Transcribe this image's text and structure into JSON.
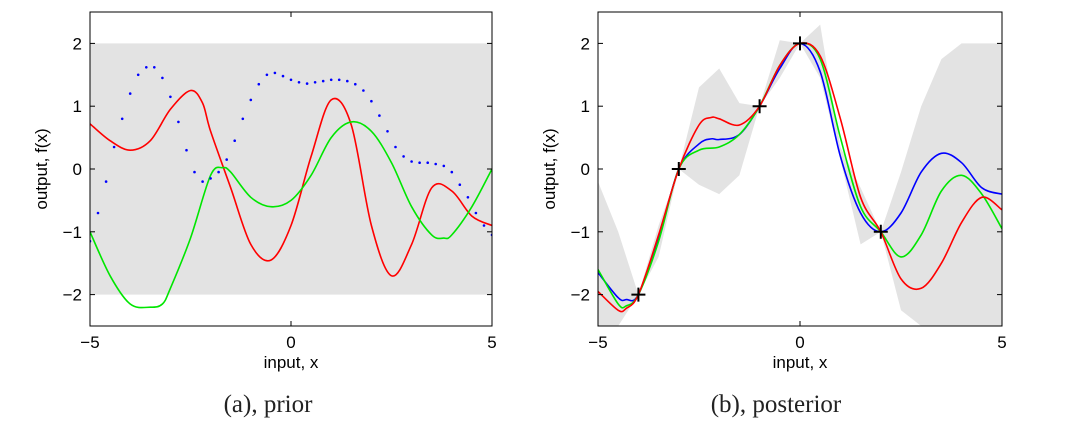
{
  "chart_data": [
    {
      "type": "line",
      "caption": "(a), prior",
      "xlabel": "input, x",
      "ylabel": "output, f(x)",
      "xlim": [
        -5,
        5
      ],
      "ylim": [
        -2.5,
        2.5
      ],
      "xticks": [
        -5,
        0,
        5
      ],
      "xtick_labels": [
        "−5",
        "0",
        "5"
      ],
      "yticks": [
        2,
        1,
        0,
        -1,
        -2
      ],
      "ytick_labels": [
        "2",
        "1",
        "0",
        "−1",
        "−2"
      ],
      "grid": false,
      "band": {
        "x": [
          -5,
          5
        ],
        "upper": [
          2,
          2
        ],
        "lower": [
          -2,
          -2
        ],
        "color": "#e3e3e3"
      },
      "series": [
        {
          "color": "#ff0000",
          "style": "solid",
          "x": [
            -5,
            -4.5,
            -4,
            -3.5,
            -3,
            -2.5,
            -2.2,
            -2,
            -1.5,
            -1,
            -0.5,
            0,
            0.5,
            1,
            1.5,
            2,
            2.5,
            3,
            3.5,
            4,
            4.5,
            5
          ],
          "y": [
            0.72,
            0.45,
            0.3,
            0.45,
            0.95,
            1.25,
            1.05,
            0.6,
            -0.3,
            -1.2,
            -1.45,
            -0.9,
            0.2,
            1.1,
            0.7,
            -0.9,
            -1.7,
            -1.2,
            -0.3,
            -0.35,
            -0.75,
            -0.9
          ]
        },
        {
          "color": "#00e600",
          "style": "solid",
          "x": [
            -5,
            -4.5,
            -4,
            -3.5,
            -3.2,
            -3,
            -2.5,
            -2,
            -1.7,
            -1.5,
            -1,
            -0.5,
            0,
            0.5,
            1,
            1.5,
            2,
            2.5,
            3,
            3.5,
            3.8,
            4,
            4.5,
            5
          ],
          "y": [
            -1.0,
            -1.7,
            -2.15,
            -2.2,
            -2.15,
            -1.9,
            -1.1,
            -0.1,
            0.02,
            -0.05,
            -0.45,
            -0.6,
            -0.5,
            -0.1,
            0.5,
            0.75,
            0.6,
            0.1,
            -0.6,
            -1.05,
            -1.1,
            -1.05,
            -0.6,
            0.0
          ]
        },
        {
          "color": "#0000ff",
          "style": "dotted",
          "x": [
            -5,
            -4.8,
            -4.6,
            -4.4,
            -4.2,
            -4.0,
            -3.8,
            -3.6,
            -3.4,
            -3.2,
            -3.0,
            -2.8,
            -2.6,
            -2.4,
            -2.2,
            -2.0,
            -1.8,
            -1.6,
            -1.4,
            -1.2,
            -1.0,
            -0.8,
            -0.6,
            -0.4,
            -0.2,
            0,
            0.2,
            0.4,
            0.6,
            0.8,
            1.0,
            1.2,
            1.4,
            1.6,
            1.8,
            2.0,
            2.2,
            2.4,
            2.6,
            2.8,
            3.0,
            3.2,
            3.4,
            3.6,
            3.8,
            4.0,
            4.2,
            4.4,
            4.6,
            4.8,
            5.0
          ],
          "y": [
            -1.15,
            -0.7,
            -0.2,
            0.35,
            0.8,
            1.2,
            1.5,
            1.62,
            1.62,
            1.45,
            1.15,
            0.75,
            0.3,
            -0.05,
            -0.2,
            -0.15,
            -0.05,
            0.15,
            0.45,
            0.8,
            1.1,
            1.35,
            1.5,
            1.53,
            1.48,
            1.42,
            1.38,
            1.36,
            1.38,
            1.4,
            1.42,
            1.42,
            1.4,
            1.35,
            1.25,
            1.08,
            0.85,
            0.6,
            0.35,
            0.2,
            0.12,
            0.1,
            0.1,
            0.08,
            0.05,
            -0.05,
            -0.25,
            -0.45,
            -0.7,
            -0.9,
            -1.05
          ]
        }
      ]
    },
    {
      "type": "line",
      "caption": "(b), posterior",
      "xlabel": "input, x",
      "ylabel": "output, f(x)",
      "xlim": [
        -5,
        5
      ],
      "ylim": [
        -2.5,
        2.5
      ],
      "xticks": [
        -5,
        0,
        5
      ],
      "xtick_labels": [
        "−5",
        "0",
        "5"
      ],
      "yticks": [
        2,
        1,
        0,
        -1,
        -2
      ],
      "ytick_labels": [
        "2",
        "1",
        "0",
        "−1",
        "−2"
      ],
      "grid": false,
      "band": {
        "color": "#e3e3e3",
        "x": [
          -5,
          -4.5,
          -4,
          -3.5,
          -3,
          -2.5,
          -2,
          -1.5,
          -1,
          -0.5,
          0,
          0.5,
          1,
          1.5,
          2,
          2.5,
          3,
          3.5,
          4,
          4.5,
          5
        ],
        "upper": [
          -0.2,
          -1.0,
          -2.0,
          -0.9,
          0.0,
          1.3,
          1.6,
          1.05,
          1.0,
          2.05,
          2.0,
          2.3,
          0.35,
          -0.3,
          -1.0,
          -0.05,
          1.0,
          1.75,
          2.0,
          2.0,
          2.0
        ],
        "lower": [
          -2.5,
          -2.5,
          -2.0,
          -1.4,
          0.0,
          -0.25,
          -0.4,
          -0.1,
          1.0,
          1.45,
          2.0,
          1.45,
          0.15,
          -1.2,
          -1.0,
          -2.25,
          -2.5,
          -2.5,
          -2.5,
          -2.5,
          -2.5
        ]
      },
      "observations": {
        "x": [
          -4,
          -3,
          -1,
          0,
          2
        ],
        "y": [
          -2,
          0,
          1,
          2,
          -1
        ]
      },
      "series": [
        {
          "color": "#0000ff",
          "style": "solid",
          "x": [
            -5,
            -4.5,
            -4.3,
            -4,
            -3.5,
            -3,
            -2.5,
            -2.2,
            -2,
            -1.5,
            -1,
            -0.5,
            0,
            0.5,
            1,
            1.5,
            2,
            2.5,
            3,
            3.5,
            4,
            4.5,
            5
          ],
          "y": [
            -1.65,
            -2.05,
            -2.08,
            -2.0,
            -1.1,
            0.0,
            0.4,
            0.48,
            0.47,
            0.55,
            1.0,
            1.6,
            2.0,
            1.55,
            0.2,
            -0.7,
            -1.0,
            -0.7,
            -0.05,
            0.25,
            0.1,
            -0.3,
            -0.4
          ]
        },
        {
          "color": "#00e600",
          "style": "solid",
          "x": [
            -5,
            -4.5,
            -4.3,
            -4,
            -3.5,
            -3,
            -2.5,
            -2,
            -1.5,
            -1,
            -0.5,
            0,
            0.5,
            1,
            1.5,
            2,
            2.5,
            3,
            3.5,
            4,
            4.5,
            5
          ],
          "y": [
            -1.6,
            -2.15,
            -2.18,
            -2.0,
            -1.15,
            0.0,
            0.3,
            0.35,
            0.55,
            1.0,
            1.65,
            2.0,
            1.75,
            0.5,
            -0.6,
            -1.0,
            -1.4,
            -1.05,
            -0.35,
            -0.1,
            -0.4,
            -0.95
          ]
        },
        {
          "color": "#ff0000",
          "style": "solid",
          "x": [
            -5,
            -4.5,
            -4.3,
            -4,
            -3.5,
            -3,
            -2.5,
            -2.2,
            -2,
            -1.5,
            -1,
            -0.5,
            0,
            0.5,
            1,
            1.5,
            2,
            2.5,
            3,
            3.5,
            4,
            4.5,
            5
          ],
          "y": [
            -1.95,
            -2.25,
            -2.22,
            -2.0,
            -1.05,
            0.0,
            0.7,
            0.82,
            0.8,
            0.7,
            1.0,
            1.65,
            2.0,
            1.8,
            0.8,
            -0.45,
            -1.0,
            -1.75,
            -1.9,
            -1.5,
            -0.85,
            -0.45,
            -0.65
          ]
        }
      ]
    }
  ]
}
